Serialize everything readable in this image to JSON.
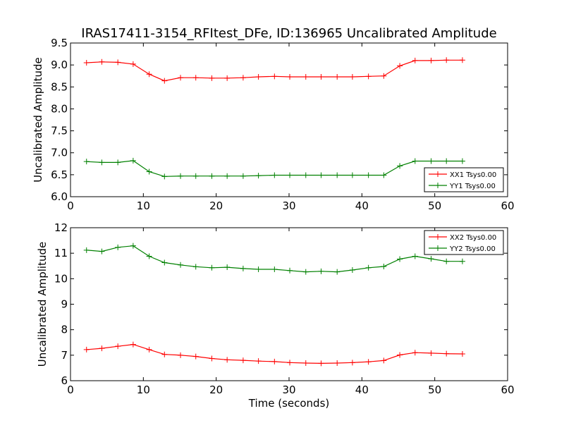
{
  "figure": {
    "title": "IRAS17411-3154_RFItest_DFe, ID:136965 Uncalibrated Amplitude"
  },
  "chart_data": [
    {
      "type": "line",
      "title": "IRAS17411-3154_RFItest_DFe, ID:136965 Uncalibrated Amplitude",
      "xlabel": "",
      "ylabel": "Uncalibrated Amplitude",
      "xlim": [
        0,
        60
      ],
      "ylim": [
        6.0,
        9.5
      ],
      "xticks": [
        0,
        10,
        20,
        30,
        40,
        50,
        60
      ],
      "xtick_labels": [
        "0",
        "10",
        "20",
        "30",
        "40",
        "50",
        "60"
      ],
      "yticks": [
        6.0,
        6.5,
        7.0,
        7.5,
        8.0,
        8.5,
        9.0,
        9.5
      ],
      "ytick_labels": [
        "6.0",
        "6.5",
        "7.0",
        "7.5",
        "8.0",
        "8.5",
        "9.0",
        "9.5"
      ],
      "grid": false,
      "legend_position": "lower-right",
      "x": [
        2.2,
        4.3,
        6.5,
        8.6,
        10.8,
        12.9,
        15.1,
        17.2,
        19.4,
        21.5,
        23.7,
        25.8,
        28.0,
        30.1,
        32.3,
        34.4,
        36.6,
        38.7,
        40.9,
        43.0,
        45.2,
        47.3,
        49.5,
        51.6,
        53.8
      ],
      "series": [
        {
          "name": "XX1 Tsys0.00",
          "color": "#ff0000",
          "values": [
            9.05,
            9.07,
            9.06,
            9.02,
            8.79,
            8.64,
            8.71,
            8.71,
            8.7,
            8.7,
            8.71,
            8.73,
            8.74,
            8.73,
            8.73,
            8.73,
            8.73,
            8.73,
            8.74,
            8.75,
            8.98,
            9.1,
            9.1,
            9.11,
            9.11
          ]
        },
        {
          "name": "YY1 Tsys0.00",
          "color": "#008000",
          "values": [
            6.8,
            6.78,
            6.78,
            6.82,
            6.57,
            6.46,
            6.47,
            6.47,
            6.47,
            6.47,
            6.47,
            6.48,
            6.49,
            6.49,
            6.49,
            6.49,
            6.49,
            6.49,
            6.49,
            6.49,
            6.7,
            6.81,
            6.81,
            6.81,
            6.81
          ]
        }
      ]
    },
    {
      "type": "line",
      "title": "",
      "xlabel": "Time (seconds)",
      "ylabel": "Uncalibrated Amplitude",
      "xlim": [
        0,
        60
      ],
      "ylim": [
        6,
        12
      ],
      "xticks": [
        0,
        10,
        20,
        30,
        40,
        50,
        60
      ],
      "xtick_labels": [
        "0",
        "10",
        "20",
        "30",
        "40",
        "50",
        "60"
      ],
      "yticks": [
        6,
        7,
        8,
        9,
        10,
        11,
        12
      ],
      "ytick_labels": [
        "6",
        "7",
        "8",
        "9",
        "10",
        "11",
        "12"
      ],
      "grid": false,
      "legend_position": "upper-right",
      "x": [
        2.2,
        4.3,
        6.5,
        8.6,
        10.8,
        12.9,
        15.1,
        17.2,
        19.4,
        21.5,
        23.7,
        25.8,
        28.0,
        30.1,
        32.3,
        34.4,
        36.6,
        38.7,
        40.9,
        43.0,
        45.2,
        47.3,
        49.5,
        51.6,
        53.8
      ],
      "series": [
        {
          "name": "XX2 Tsys0.00",
          "color": "#ff0000",
          "values": [
            7.22,
            7.27,
            7.35,
            7.42,
            7.22,
            7.03,
            7.0,
            6.95,
            6.87,
            6.82,
            6.8,
            6.77,
            6.75,
            6.71,
            6.69,
            6.68,
            6.69,
            6.71,
            6.74,
            6.79,
            7.01,
            7.1,
            7.08,
            7.06,
            7.05
          ]
        },
        {
          "name": "YY2 Tsys0.00",
          "color": "#008000",
          "values": [
            11.12,
            11.07,
            11.23,
            11.29,
            10.88,
            10.63,
            10.54,
            10.47,
            10.43,
            10.45,
            10.4,
            10.37,
            10.37,
            10.32,
            10.27,
            10.29,
            10.27,
            10.34,
            10.43,
            10.48,
            10.77,
            10.88,
            10.78,
            10.68,
            10.68
          ]
        }
      ]
    }
  ]
}
